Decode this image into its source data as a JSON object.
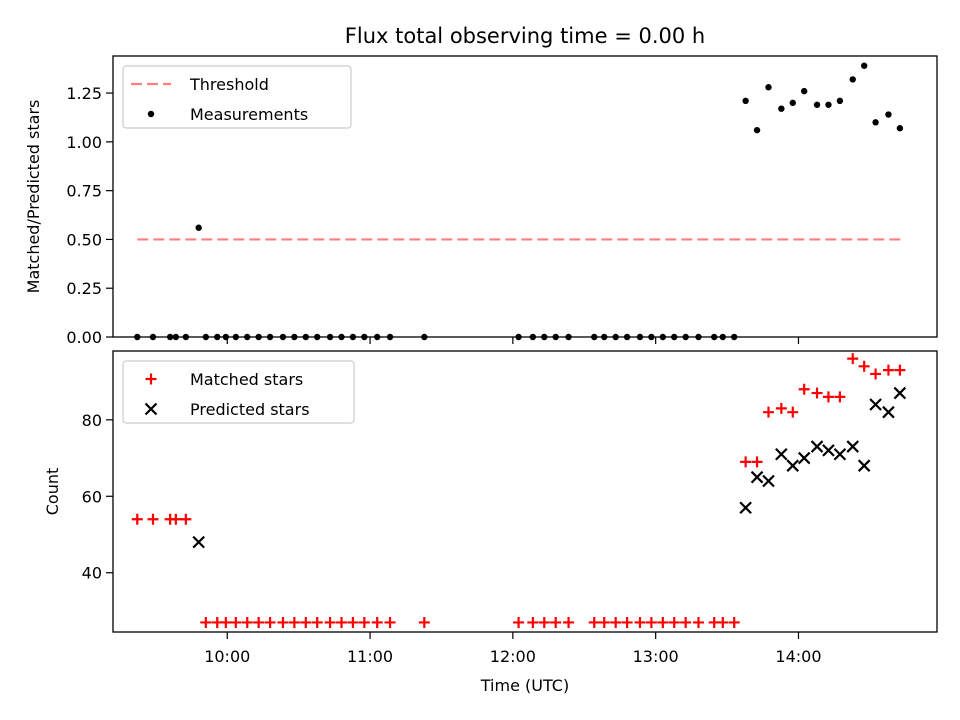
{
  "figure": {
    "title": "Flux total observing time = 0.00 h"
  },
  "chart_data": [
    {
      "type": "line+scatter",
      "ylabel": "Matched/Predicted stars",
      "xlim": [
        9.2,
        14.97
      ],
      "ylim": [
        0.0,
        1.44
      ],
      "yticks": [
        0.0,
        0.25,
        0.5,
        0.75,
        1.0,
        1.25
      ],
      "ytick_labels": [
        "0.00",
        "0.25",
        "0.50",
        "0.75",
        "1.00",
        "1.25"
      ],
      "xticks": [
        10,
        11,
        12,
        13,
        14
      ],
      "xtick_labels_shown": false,
      "legend_position": "upper left",
      "legend": [
        "Threshold",
        "Measurements"
      ],
      "series": [
        {
          "name": "Threshold",
          "kind": "dashed-line",
          "color": "#ff7f7f",
          "x": [
            9.37,
            14.72
          ],
          "y": [
            0.5,
            0.5
          ]
        },
        {
          "name": "Measurements",
          "kind": "points",
          "color": "#000000",
          "points": [
            [
              9.37,
              0.0
            ],
            [
              9.48,
              0.0
            ],
            [
              9.6,
              0.0
            ],
            [
              9.64,
              0.0
            ],
            [
              9.71,
              0.0
            ],
            [
              9.8,
              0.56
            ],
            [
              9.85,
              0.0
            ],
            [
              9.93,
              0.0
            ],
            [
              9.99,
              0.0
            ],
            [
              10.06,
              0.0
            ],
            [
              10.14,
              0.0
            ],
            [
              10.22,
              0.0
            ],
            [
              10.3,
              0.0
            ],
            [
              10.39,
              0.0
            ],
            [
              10.47,
              0.0
            ],
            [
              10.55,
              0.0
            ],
            [
              10.63,
              0.0
            ],
            [
              10.72,
              0.0
            ],
            [
              10.8,
              0.0
            ],
            [
              10.88,
              0.0
            ],
            [
              10.96,
              0.0
            ],
            [
              11.05,
              0.0
            ],
            [
              11.14,
              0.0
            ],
            [
              11.38,
              0.0
            ],
            [
              12.04,
              0.0
            ],
            [
              12.14,
              0.0
            ],
            [
              12.22,
              0.0
            ],
            [
              12.3,
              0.0
            ],
            [
              12.39,
              0.0
            ],
            [
              12.57,
              0.0
            ],
            [
              12.64,
              0.0
            ],
            [
              12.72,
              0.0
            ],
            [
              12.8,
              0.0
            ],
            [
              12.89,
              0.0
            ],
            [
              12.97,
              0.0
            ],
            [
              13.05,
              0.0
            ],
            [
              13.13,
              0.0
            ],
            [
              13.21,
              0.0
            ],
            [
              13.3,
              0.0
            ],
            [
              13.41,
              0.0
            ],
            [
              13.47,
              0.0
            ],
            [
              13.55,
              0.0
            ],
            [
              13.63,
              1.21
            ],
            [
              13.71,
              1.06
            ],
            [
              13.79,
              1.28
            ],
            [
              13.88,
              1.17
            ],
            [
              13.96,
              1.2
            ],
            [
              14.04,
              1.26
            ],
            [
              14.13,
              1.19
            ],
            [
              14.21,
              1.19
            ],
            [
              14.29,
              1.21
            ],
            [
              14.38,
              1.32
            ],
            [
              14.46,
              1.39
            ],
            [
              14.54,
              1.1
            ],
            [
              14.63,
              1.14
            ],
            [
              14.71,
              1.07
            ]
          ]
        }
      ]
    },
    {
      "type": "scatter",
      "xlabel": "Time (UTC)",
      "ylabel": "Count",
      "xlim": [
        9.2,
        14.97
      ],
      "ylim": [
        24.5,
        98.0
      ],
      "yticks": [
        40,
        60,
        80
      ],
      "ytick_labels": [
        "40",
        "60",
        "80"
      ],
      "xticks": [
        10,
        11,
        12,
        13,
        14
      ],
      "xtick_labels": [
        "10:00",
        "11:00",
        "12:00",
        "13:00",
        "14:00"
      ],
      "legend_position": "upper left",
      "legend": [
        "Matched stars",
        "Predicted stars"
      ],
      "series": [
        {
          "name": "Matched stars",
          "marker": "plus",
          "color": "#ff0000",
          "points": [
            [
              9.37,
              54
            ],
            [
              9.48,
              54
            ],
            [
              9.6,
              54
            ],
            [
              9.64,
              54
            ],
            [
              9.71,
              54
            ],
            [
              9.85,
              27
            ],
            [
              9.93,
              27
            ],
            [
              9.99,
              27
            ],
            [
              10.06,
              27
            ],
            [
              10.14,
              27
            ],
            [
              10.22,
              27
            ],
            [
              10.3,
              27
            ],
            [
              10.39,
              27
            ],
            [
              10.47,
              27
            ],
            [
              10.55,
              27
            ],
            [
              10.63,
              27
            ],
            [
              10.72,
              27
            ],
            [
              10.8,
              27
            ],
            [
              10.88,
              27
            ],
            [
              10.96,
              27
            ],
            [
              11.05,
              27
            ],
            [
              11.14,
              27
            ],
            [
              11.38,
              27
            ],
            [
              12.04,
              27
            ],
            [
              12.14,
              27
            ],
            [
              12.22,
              27
            ],
            [
              12.3,
              27
            ],
            [
              12.39,
              27
            ],
            [
              12.57,
              27
            ],
            [
              12.64,
              27
            ],
            [
              12.72,
              27
            ],
            [
              12.8,
              27
            ],
            [
              12.89,
              27
            ],
            [
              12.97,
              27
            ],
            [
              13.05,
              27
            ],
            [
              13.13,
              27
            ],
            [
              13.21,
              27
            ],
            [
              13.3,
              27
            ],
            [
              13.41,
              27
            ],
            [
              13.47,
              27
            ],
            [
              13.55,
              27
            ],
            [
              13.63,
              69
            ],
            [
              13.71,
              69
            ],
            [
              13.79,
              82
            ],
            [
              13.88,
              83
            ],
            [
              13.96,
              82
            ],
            [
              14.04,
              88
            ],
            [
              14.13,
              87
            ],
            [
              14.21,
              86
            ],
            [
              14.29,
              86
            ],
            [
              14.38,
              96
            ],
            [
              14.46,
              94
            ],
            [
              14.54,
              92
            ],
            [
              14.63,
              93
            ],
            [
              14.71,
              93
            ]
          ]
        },
        {
          "name": "Predicted stars",
          "marker": "x",
          "color": "#000000",
          "points": [
            [
              9.8,
              48
            ],
            [
              13.63,
              57
            ],
            [
              13.71,
              65
            ],
            [
              13.79,
              64
            ],
            [
              13.88,
              71
            ],
            [
              13.96,
              68
            ],
            [
              14.04,
              70
            ],
            [
              14.13,
              73
            ],
            [
              14.21,
              72
            ],
            [
              14.29,
              71
            ],
            [
              14.38,
              73
            ],
            [
              14.46,
              68
            ],
            [
              14.54,
              84
            ],
            [
              14.63,
              82
            ],
            [
              14.71,
              87
            ]
          ]
        }
      ]
    }
  ]
}
